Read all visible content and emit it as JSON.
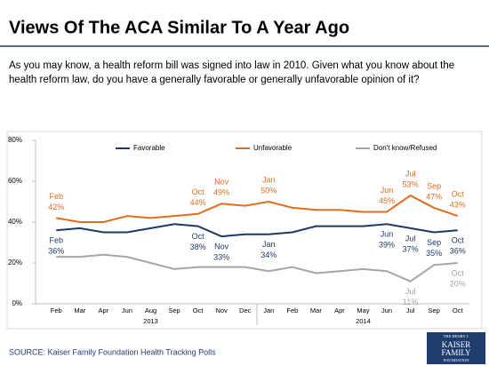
{
  "chart_data": {
    "type": "line",
    "title": "Views Of The ACA Similar To A Year Ago",
    "subtitle": "As you may know, a health reform bill was signed into law in 2010. Given what you know about the health reform law, do you have a generally favorable or generally unfavorable opinion of it?",
    "source": "SOURCE: Kaiser Family Foundation Health Tracking Polls",
    "logo": [
      "THE HENRY J.",
      "KAISER",
      "FAMILY",
      "FOUNDATION"
    ],
    "categories": [
      "Feb",
      "Mar",
      "Apr",
      "Jun",
      "Aug",
      "Sep",
      "Oct",
      "Nov",
      "Dec",
      "Jan",
      "Feb",
      "Mar",
      "Apr",
      "May",
      "Jun",
      "Jul",
      "Sep",
      "Oct"
    ],
    "year_labels": [
      "2013",
      "2014"
    ],
    "series": [
      {
        "name": "Favorable",
        "color": "#1f3864",
        "values": [
          36,
          37,
          35,
          35,
          37,
          39,
          38,
          33,
          34,
          34,
          35,
          38,
          38,
          38,
          39,
          37,
          35,
          36
        ],
        "value_labels": [
          "36%",
          null,
          null,
          null,
          null,
          null,
          "38%",
          "33%",
          null,
          "34%",
          null,
          null,
          null,
          null,
          "39%",
          "37%",
          "35%",
          "36%"
        ]
      },
      {
        "name": "Unfavorable",
        "color": "#e36c1e",
        "values": [
          42,
          40,
          40,
          43,
          42,
          43,
          44,
          49,
          48,
          50,
          47,
          46,
          46,
          45,
          45,
          53,
          47,
          43
        ],
        "value_labels": [
          "42%",
          null,
          null,
          null,
          null,
          null,
          "44%",
          "49%",
          null,
          "50%",
          null,
          null,
          null,
          null,
          "45%",
          "53%",
          "47%",
          "43%"
        ]
      },
      {
        "name": "Don't know/Refused",
        "color": "#a6a6a6",
        "values": [
          23,
          23,
          24,
          23,
          20,
          17,
          18,
          18,
          18,
          16,
          18,
          15,
          16,
          17,
          16,
          11,
          19,
          20
        ],
        "value_labels": [
          null,
          null,
          null,
          null,
          null,
          null,
          null,
          null,
          null,
          null,
          null,
          null,
          null,
          null,
          null,
          "11%",
          null,
          "20%"
        ]
      }
    ],
    "ylim": [
      0,
      80
    ],
    "yticks": [
      {
        "value": 0,
        "label": "0%"
      },
      {
        "value": 20,
        "label": "20%"
      },
      {
        "value": 40,
        "label": "40%"
      },
      {
        "value": 60,
        "label": "60%"
      },
      {
        "value": 80,
        "label": "80%"
      }
    ]
  }
}
